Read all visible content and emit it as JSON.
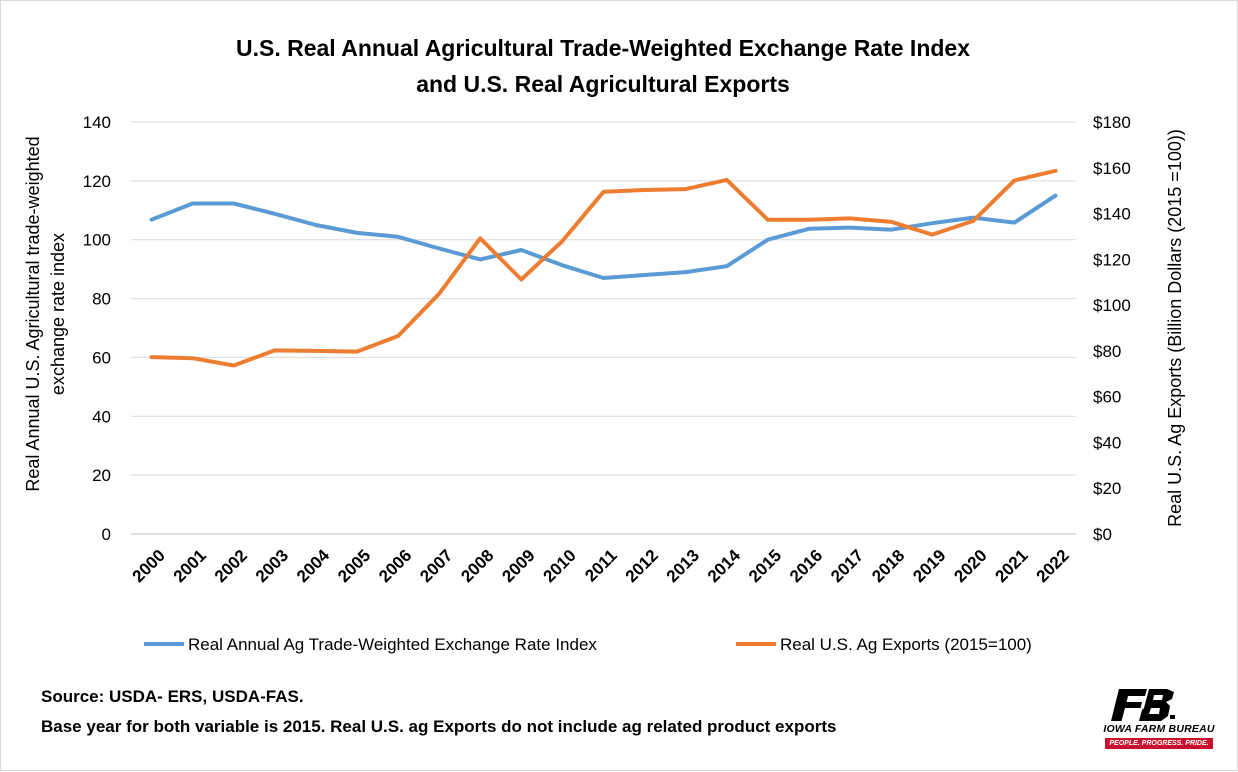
{
  "chart_data": {
    "type": "line",
    "title": [
      "U.S. Real Annual Agricultural Trade-Weighted Exchange Rate Index",
      "and U.S. Real Agricultural Exports"
    ],
    "categories": [
      "2000",
      "2001",
      "2002",
      "2003",
      "2004",
      "2005",
      "2006",
      "2007",
      "2008",
      "2009",
      "2010",
      "2011",
      "2012",
      "2013",
      "2014",
      "2015",
      "2016",
      "2017",
      "2018",
      "2019",
      "2020",
      "2021",
      "2022"
    ],
    "y_left": {
      "label": [
        "Real Annual U.S. Agricultural trade-weighted",
        "exchange rate index"
      ],
      "ylim": [
        0,
        140
      ],
      "ticks": [
        0,
        20,
        40,
        60,
        80,
        100,
        120,
        140
      ],
      "tick_labels": [
        "0",
        "20",
        "40",
        "60",
        "80",
        "100",
        "120",
        "140"
      ]
    },
    "y_right": {
      "label": "Real U.S. Ag Exports (Billion Dollars (2015 =100))",
      "ylim": [
        0,
        180
      ],
      "ticks": [
        0,
        20,
        40,
        60,
        80,
        100,
        120,
        140,
        160,
        180
      ],
      "tick_labels": [
        "$0",
        "$20",
        "$40",
        "$60",
        "$80",
        "$100",
        "$120",
        "$140",
        "$160",
        "$180"
      ]
    },
    "series": [
      {
        "name": "Real Annual Ag Trade-Weighted Exchange Rate Index",
        "axis": "left",
        "color": "#5b9bd5",
        "values": [
          106.8,
          112.3,
          112.3,
          108.8,
          105.0,
          102.3,
          101.0,
          97.0,
          93.3,
          96.5,
          91.3,
          87.0,
          88.0,
          89.0,
          91.0,
          100.0,
          103.7,
          104.1,
          103.4,
          105.6,
          107.5,
          105.8,
          115.0
        ]
      },
      {
        "name": "Real U.S. Ag Exports (2015=100)",
        "axis": "right",
        "color": "#ed7d31",
        "values": [
          77.3,
          76.8,
          73.6,
          80.2,
          80.0,
          79.7,
          86.5,
          105.0,
          129.2,
          111.2,
          128.0,
          149.5,
          150.3,
          150.7,
          154.7,
          137.3,
          137.3,
          137.9,
          136.4,
          130.8,
          136.8,
          154.5,
          158.7
        ]
      }
    ],
    "grid": true,
    "legend_position": "bottom"
  },
  "footer": {
    "source": "Source: USDA- ERS, USDA-FAS.",
    "note": "Base year for both variable is 2015. Real U.S. ag Exports do not include ag related product exports"
  },
  "logo": {
    "org": "IOWA FARM BUREAU",
    "tagline": "PEOPLE. PROGRESS. PRIDE.",
    "colors": {
      "mark": "#000000",
      "accent": "#c8102e"
    }
  }
}
